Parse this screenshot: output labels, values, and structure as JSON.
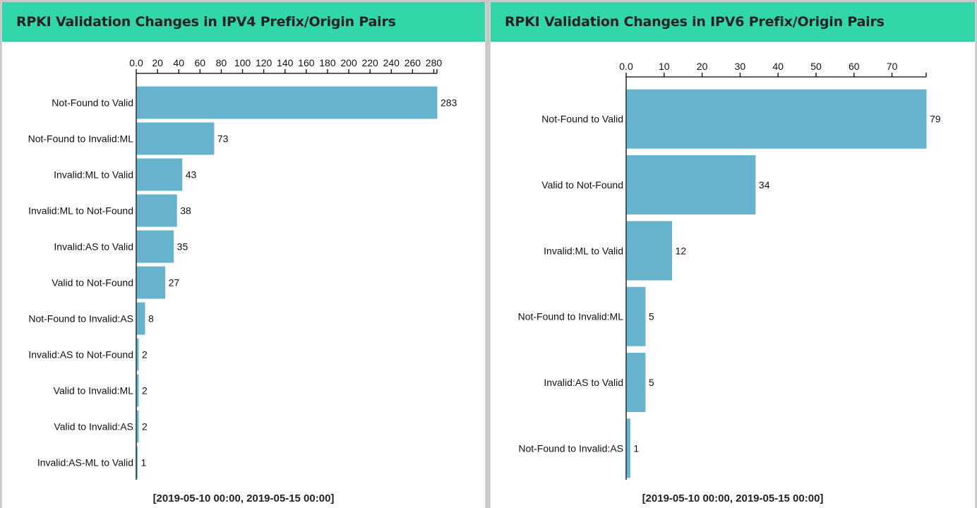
{
  "chart_data": [
    {
      "type": "bar",
      "orientation": "horizontal",
      "title": "RPKI Validation Changes in IPV4 Prefix/Origin Pairs",
      "categories": [
        "Not-Found to Valid",
        "Not-Found to Invalid:ML",
        "Invalid:ML to Valid",
        "Invalid:ML to Not-Found",
        "Invalid:AS to Valid",
        "Valid to Not-Found",
        "Not-Found to Invalid:AS",
        "Invalid:AS to Not-Found",
        "Valid to Invalid:ML",
        "Valid to Invalid:AS",
        "Invalid:AS-ML to Valid"
      ],
      "values": [
        283,
        73,
        43,
        38,
        35,
        27,
        8,
        2,
        2,
        2,
        1
      ],
      "xlim": [
        0,
        283
      ],
      "xticks": [
        0,
        20,
        40,
        60,
        80,
        100,
        120,
        140,
        160,
        180,
        200,
        220,
        240,
        260,
        280
      ],
      "xtick_labels": [
        "0.0",
        "20",
        "40",
        "60",
        "80",
        "100",
        "120",
        "140",
        "160",
        "180",
        "200",
        "220",
        "240",
        "260",
        "280"
      ],
      "axis_position": "top",
      "grid": false,
      "bar_color": "#67b2cc",
      "footer": "[2019-05-10 00:00, 2019-05-15 00:00]"
    },
    {
      "type": "bar",
      "orientation": "horizontal",
      "title": "RPKI Validation Changes in IPV6 Prefix/Origin Pairs",
      "categories": [
        "Not-Found to Valid",
        "Valid to Not-Found",
        "Invalid:ML to Valid",
        "Not-Found to Invalid:ML",
        "Invalid:AS to Valid",
        "Not-Found to Invalid:AS"
      ],
      "values": [
        79,
        34,
        12,
        5,
        5,
        1
      ],
      "xlim": [
        0,
        79
      ],
      "xticks": [
        0,
        10,
        20,
        30,
        40,
        50,
        60,
        70
      ],
      "xtick_labels": [
        "0.0",
        "10",
        "20",
        "30",
        "40",
        "50",
        "60",
        "70"
      ],
      "axis_position": "top",
      "grid": false,
      "bar_color": "#67b2cc",
      "footer": "[2019-05-10 00:00, 2019-05-15 00:00]"
    }
  ],
  "theme": {
    "header_color": "#31d6a9",
    "bar_color": "#67b2cc"
  }
}
